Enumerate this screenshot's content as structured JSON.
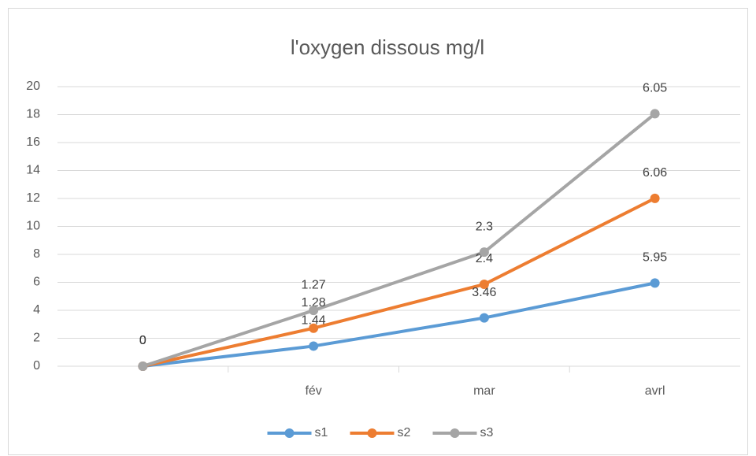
{
  "chart_data": {
    "type": "line",
    "stacked": true,
    "title": "l'oxygen dissous mg/l",
    "categories": [
      null,
      "fév",
      "mar",
      "avrl"
    ],
    "series": [
      {
        "name": "s1",
        "color": "#5b9bd5",
        "values": [
          0,
          1.44,
          3.46,
          5.95
        ]
      },
      {
        "name": "s2",
        "color": "#ed7d31",
        "values": [
          0,
          1.28,
          2.4,
          6.06
        ]
      },
      {
        "name": "s3",
        "color": "#a5a5a5",
        "values": [
          0,
          1.27,
          2.3,
          6.05
        ]
      }
    ],
    "ylim": [
      0,
      20
    ],
    "yticks": [
      0,
      2,
      4,
      6,
      8,
      10,
      12,
      14,
      16,
      18,
      20
    ],
    "grid": true,
    "legend": "bottom",
    "data_labels": true
  }
}
